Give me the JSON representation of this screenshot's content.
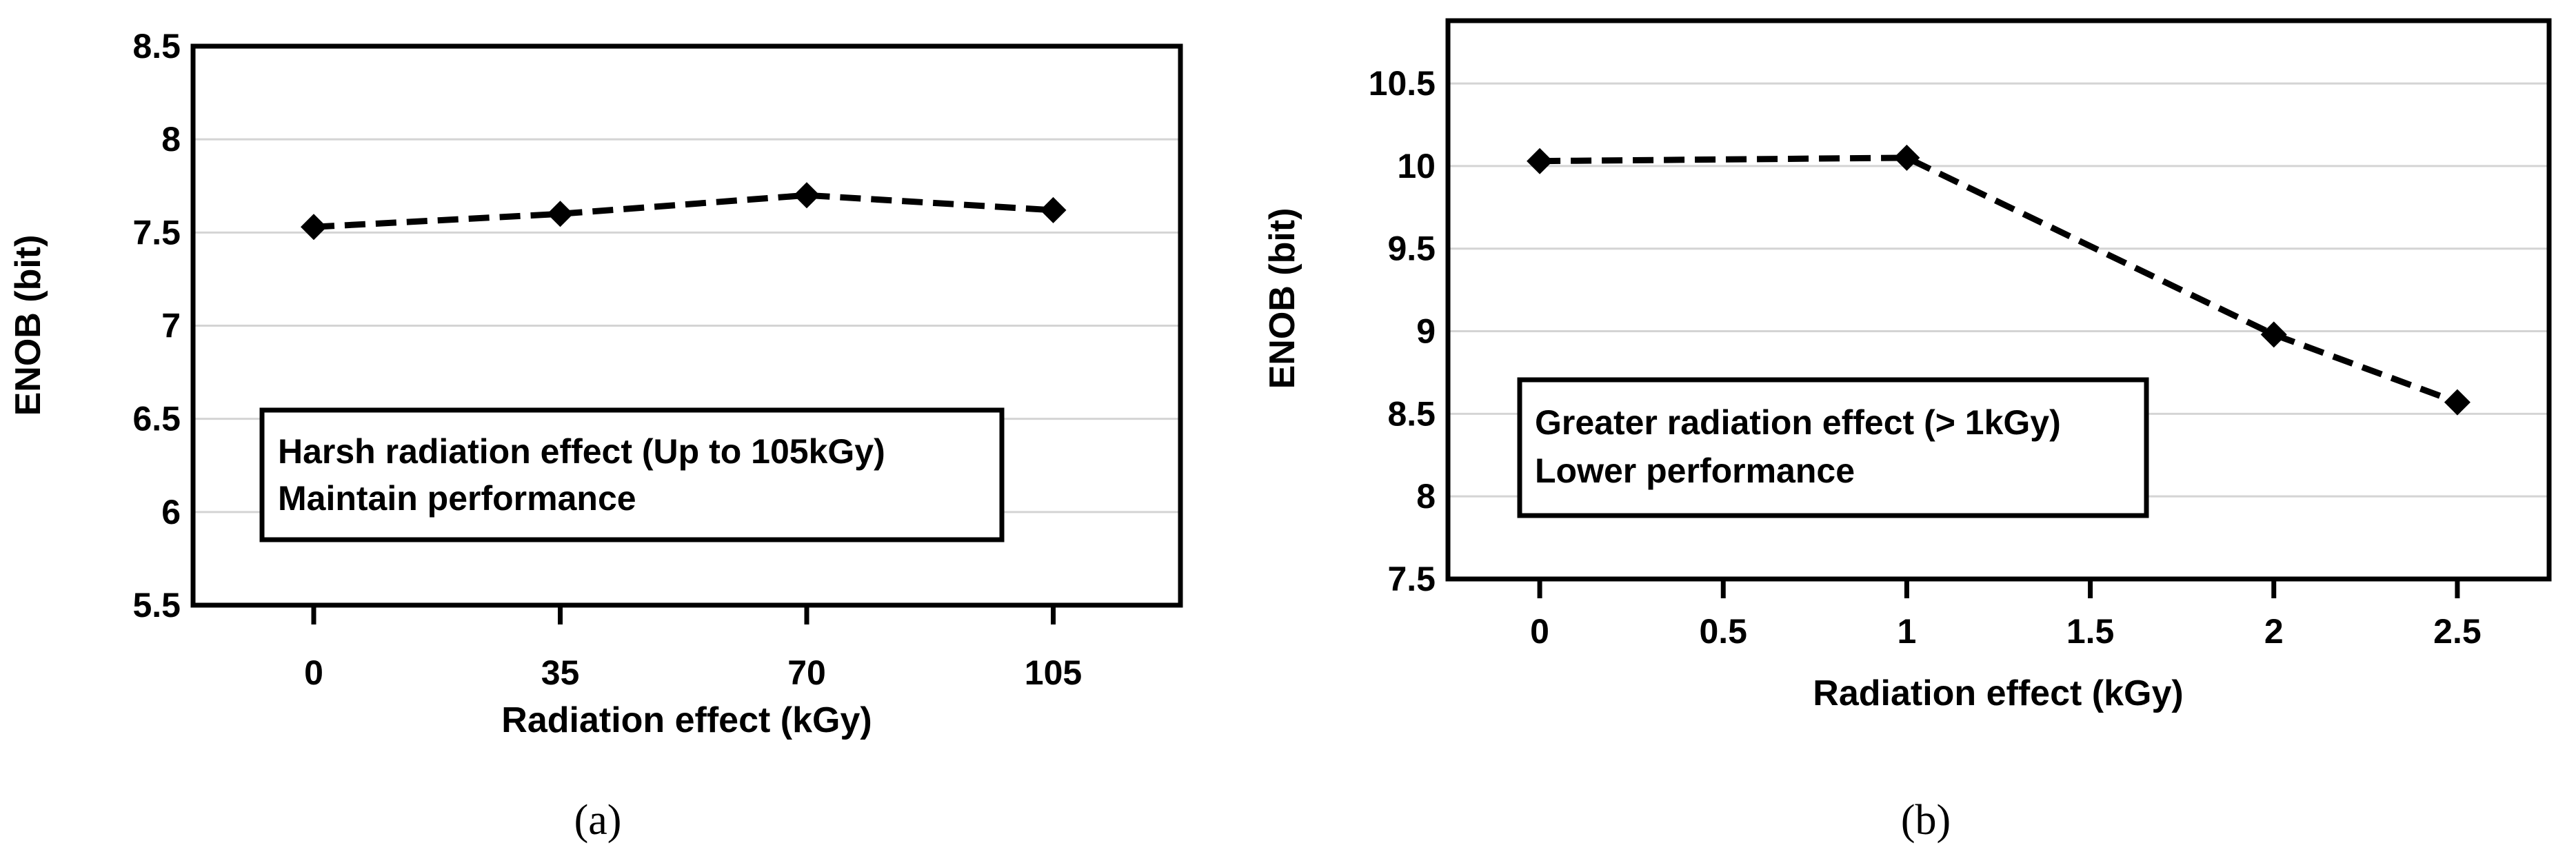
{
  "chart_data": [
    {
      "type": "line",
      "panel_caption": "(a)",
      "x": [
        0,
        35,
        70,
        105
      ],
      "xticks": [
        "0",
        "35",
        "70",
        "105"
      ],
      "values": [
        7.53,
        7.6,
        7.7,
        7.62
      ],
      "yticks": [
        "5.5",
        "6",
        "6.5",
        "7",
        "7.5",
        "8",
        "8.5"
      ],
      "ylim": [
        5.5,
        8.5
      ],
      "xlabel": "Radiation effect (kGy)",
      "ylabel": "ENOB (bit)",
      "annotation": [
        "Harsh radiation effect (Up to 105kGy)",
        "Maintain performance"
      ],
      "grid": true,
      "marker": "diamond",
      "line_style": "dashed"
    },
    {
      "type": "line",
      "panel_caption": "(b)",
      "x": [
        0,
        1,
        2,
        2.5
      ],
      "xticks": [
        "0",
        "0.5",
        "1",
        "1.5",
        "2",
        "2.5"
      ],
      "values": [
        10.03,
        10.05,
        8.98,
        8.57
      ],
      "yticks": [
        "7.5",
        "8",
        "8.5",
        "9",
        "9.5",
        "10",
        "10.5"
      ],
      "ylim": [
        7.5,
        10.88
      ],
      "xlim": [
        -0.25,
        2.75
      ],
      "xlabel": "Radiation effect (kGy)",
      "ylabel": "ENOB (bit)",
      "annotation": [
        "Greater radiation effect (> 1kGy)",
        "Lower performance"
      ],
      "grid": true,
      "marker": "diamond",
      "line_style": "dashed"
    }
  ]
}
